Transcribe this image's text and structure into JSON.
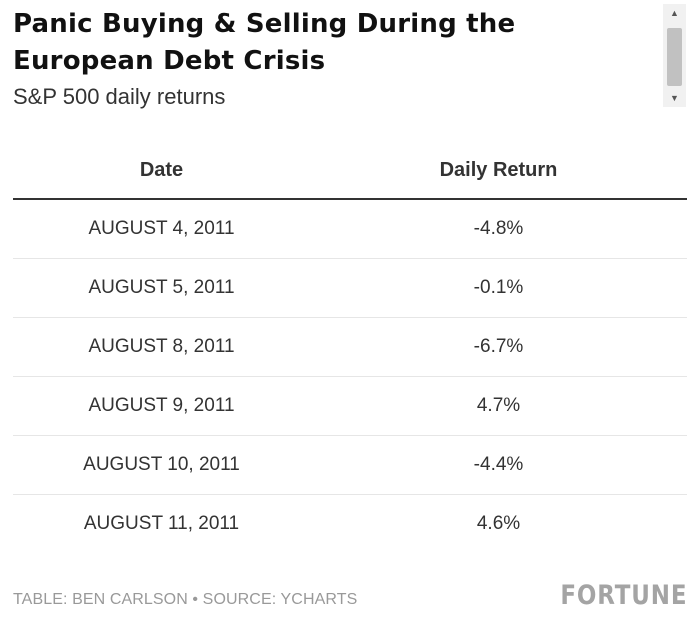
{
  "title": "Panic Buying & Selling During the European Debt Crisis",
  "subtitle": "S&P 500 daily returns",
  "chart_data": {
    "type": "table",
    "columns": [
      "Date",
      "Daily Return"
    ],
    "rows": [
      {
        "date": "AUGUST 4, 2011",
        "daily_return": "-4.8%"
      },
      {
        "date": "AUGUST 5, 2011",
        "daily_return": "-0.1%"
      },
      {
        "date": "AUGUST 8, 2011",
        "daily_return": "-6.7%"
      },
      {
        "date": "AUGUST 9, 2011",
        "daily_return": "4.7%"
      },
      {
        "date": "AUGUST 10, 2011",
        "daily_return": "-4.4%"
      },
      {
        "date": "AUGUST 11, 2011",
        "daily_return": "4.6%"
      }
    ]
  },
  "footer": {
    "credit": "TABLE: BEN CARLSON • SOURCE: YCHARTS",
    "logo": "FORTUNE"
  },
  "scrollbar": {
    "up_icon": "triangle-up-icon",
    "down_icon": "triangle-down-icon"
  }
}
